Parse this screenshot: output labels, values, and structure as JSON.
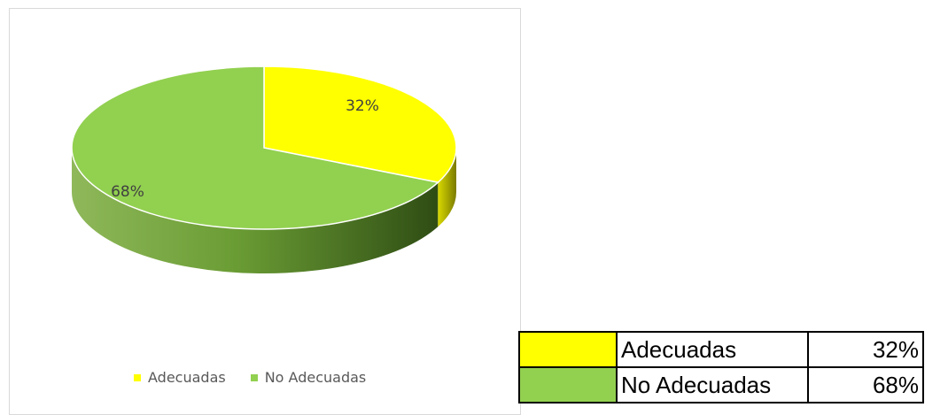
{
  "chart_data": {
    "type": "pie",
    "categories": [
      "Adecuadas",
      "No Adecuadas"
    ],
    "values": [
      32,
      68
    ],
    "data_labels": [
      "32%",
      "68%"
    ],
    "colors": [
      "#FFFF00",
      "#92D050"
    ],
    "legend_position": "bottom",
    "style": "3d"
  },
  "legend": [
    {
      "label": "Adecuadas",
      "color": "#FFFF00"
    },
    {
      "label": "No Adecuadas",
      "color": "#92D050"
    }
  ],
  "table": {
    "rows": [
      {
        "label": "Adecuadas",
        "value": "32%",
        "color": "#FFFF00"
      },
      {
        "label": "No Adecuadas",
        "value": "68%",
        "color": "#92D050"
      }
    ]
  }
}
